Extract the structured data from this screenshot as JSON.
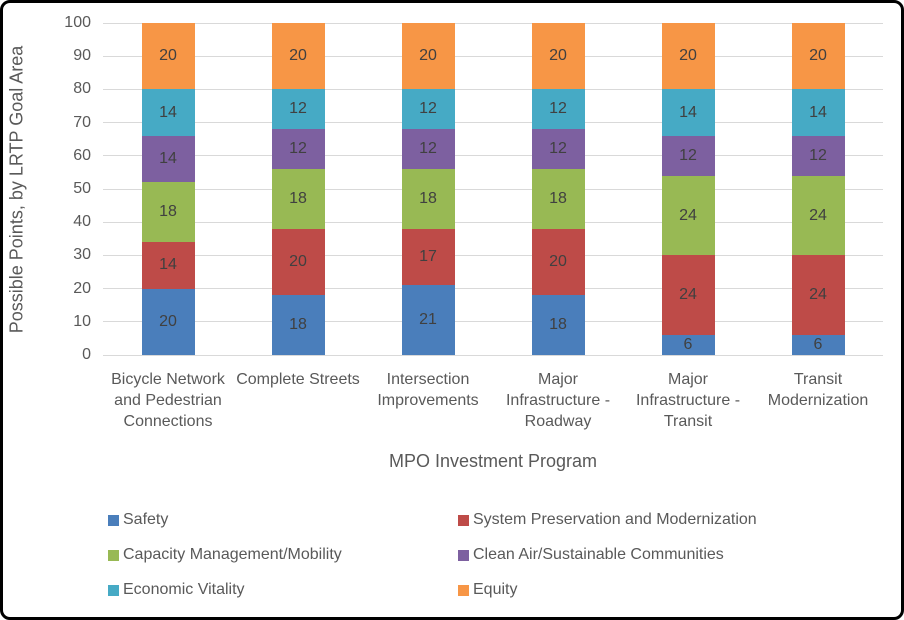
{
  "chart_data": {
    "type": "bar",
    "subtype": "stacked-vertical",
    "title": "",
    "xlabel": "MPO Investment Program",
    "ylabel": "Possible Points, by LRTP Goal Area",
    "ylim": [
      0,
      100
    ],
    "ytick_step": 10,
    "grid": true,
    "legend_position": "bottom",
    "categories": [
      "Bicycle Network and Pedestrian Connections",
      "Complete Streets",
      "Intersection Improvements",
      "Major Infrastructure - Roadway",
      "Major Infrastructure - Transit",
      "Transit Modernization"
    ],
    "series": [
      {
        "name": "Safety",
        "color": "#4a7ebb",
        "values": [
          20,
          18,
          21,
          18,
          6,
          6
        ]
      },
      {
        "name": "System Preservation and Modernization",
        "color": "#be4b48",
        "values": [
          14,
          20,
          17,
          20,
          24,
          24
        ]
      },
      {
        "name": "Capacity Management/Mobility",
        "color": "#98b954",
        "values": [
          18,
          18,
          18,
          18,
          24,
          24
        ]
      },
      {
        "name": "Clean Air/Sustainable Communities",
        "color": "#7d60a0",
        "values": [
          14,
          12,
          12,
          12,
          12,
          12
        ]
      },
      {
        "name": "Economic Vitality",
        "color": "#46aac5",
        "values": [
          14,
          12,
          12,
          12,
          14,
          14
        ]
      },
      {
        "name": "Equity",
        "color": "#f79646",
        "values": [
          20,
          20,
          20,
          20,
          20,
          20
        ]
      }
    ]
  },
  "style": {
    "gridline_color": "#d9d9d9",
    "axis_text_color": "#595959",
    "value_label_color": "#404040",
    "frame_border_color": "#000000",
    "background_color": "#ffffff"
  }
}
